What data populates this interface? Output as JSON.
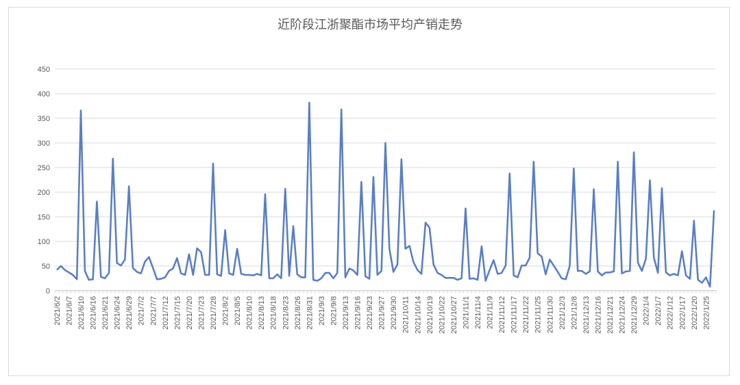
{
  "chart_data": {
    "type": "line",
    "title": "近阶段江浙聚酯市场平均产销走势",
    "xlabel": "",
    "ylabel": "",
    "ylim": [
      0,
      450
    ],
    "y_ticks": [
      0,
      50,
      100,
      150,
      200,
      250,
      300,
      350,
      400,
      450
    ],
    "grid": true,
    "legend": "none",
    "color": "#5b7fc1",
    "label_every": 3,
    "x_tick_labels": [
      "2021/6/2",
      "2021/6/7",
      "2021/6/10",
      "2021/6/16",
      "2021/6/21",
      "2021/6/24",
      "2021/6/29",
      "2021/7/2",
      "2021/7/7",
      "2021/7/12",
      "2021/7/15",
      "2021/7/20",
      "2021/7/23",
      "2021/7/28",
      "2021/8/2",
      "2021/8/5",
      "2021/8/10",
      "2021/8/13",
      "2021/8/18",
      "2021/8/23",
      "2021/8/26",
      "2021/8/31",
      "2021/9/3",
      "2021/9/8",
      "2021/9/13",
      "2021/9/16",
      "2021/9/23",
      "2021/9/27",
      "2021/9/30",
      "2021/10/11",
      "2021/10/14",
      "2021/10/19",
      "2021/10/22",
      "2021/10/27",
      "2021/11/1",
      "2021/11/4",
      "2021/11/9",
      "2021/11/12",
      "2021/11/17",
      "2021/11/22",
      "2021/11/25",
      "2021/11/30",
      "2021/12/3",
      "2021/12/8",
      "2021/12/13",
      "2021/12/16",
      "2021/12/21",
      "2021/12/24",
      "2021/12/29",
      "2022/1/4",
      "2022/1/7",
      "2022/1/12",
      "2022/1/17",
      "2022/1/20",
      "2022/1/25"
    ],
    "values": [
      42,
      50,
      42,
      37,
      32,
      23,
      366,
      40,
      22,
      23,
      181,
      28,
      25,
      36,
      268,
      56,
      51,
      63,
      212,
      46,
      38,
      35,
      59,
      68,
      46,
      23,
      24,
      27,
      40,
      45,
      66,
      35,
      32,
      74,
      32,
      86,
      78,
      32,
      32,
      258,
      33,
      30,
      123,
      35,
      32,
      85,
      34,
      32,
      32,
      31,
      34,
      31,
      196,
      25,
      25,
      33,
      25,
      207,
      30,
      131,
      33,
      27,
      27,
      382,
      22,
      20,
      25,
      36,
      36,
      25,
      36,
      368,
      27,
      45,
      41,
      32,
      221,
      29,
      24,
      231,
      32,
      40,
      300,
      85,
      38,
      53,
      267,
      85,
      91,
      58,
      42,
      34,
      138,
      128,
      53,
      36,
      32,
      26,
      26,
      26,
      22,
      25,
      167,
      24,
      25,
      22,
      90,
      20,
      42,
      62,
      34,
      36,
      51,
      238,
      31,
      27,
      51,
      51,
      67,
      262,
      76,
      69,
      33,
      63,
      51,
      38,
      25,
      23,
      50,
      248,
      40,
      40,
      34,
      39,
      206,
      39,
      31,
      37,
      37,
      39,
      262,
      35,
      39,
      40,
      281,
      57,
      40,
      65,
      224,
      67,
      36,
      208,
      37,
      31,
      34,
      31,
      80,
      31,
      24,
      142,
      22,
      16,
      27,
      8,
      163
    ]
  }
}
